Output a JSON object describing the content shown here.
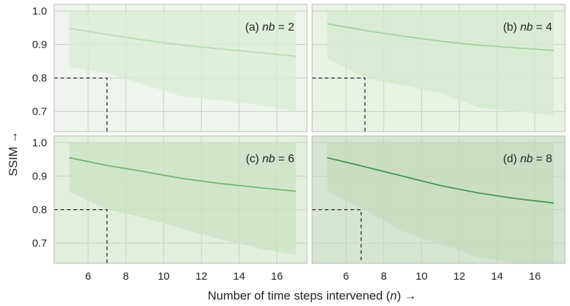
{
  "figure": {
    "xlabel_pre": "Number of time steps intervened (",
    "xlabel_var": "n",
    "xlabel_post": ") →",
    "ylabel": "SSIM →"
  },
  "chart_data": {
    "type": "line",
    "layout": "2x2 grid of panels sharing axes",
    "xlim": [
      4.2,
      17.6
    ],
    "ylim": [
      0.64,
      1.02
    ],
    "xticks": [
      6,
      8,
      10,
      12,
      14,
      16
    ],
    "yticks": [
      0.7,
      0.8,
      0.9,
      1.0
    ],
    "xtick_labels": [
      "6",
      "8",
      "10",
      "12",
      "14",
      "16"
    ],
    "ytick_labels": [
      "0.7",
      "0.8",
      "0.9",
      "1.0"
    ],
    "grid": true,
    "xlabel": "Number of time steps intervened (n) →",
    "ylabel": "SSIM →",
    "panels": [
      {
        "id": "a",
        "label_prefix": "(a) ",
        "label_var": "nb",
        "label_suffix": " = 2",
        "background": "#eef5ec",
        "band_color": "#d9ecd6",
        "line_color": "#b9dcb2",
        "x": [
          5,
          7,
          9,
          11,
          13,
          15,
          17
        ],
        "mean": [
          0.948,
          0.93,
          0.913,
          0.898,
          0.887,
          0.876,
          0.865
        ],
        "upper": [
          1.0,
          1.0,
          1.0,
          1.0,
          1.0,
          1.0,
          1.0
        ],
        "lower": [
          0.832,
          0.815,
          0.78,
          0.745,
          0.733,
          0.72,
          0.7
        ],
        "threshold": {
          "ssim": 0.8,
          "n": 7
        }
      },
      {
        "id": "b",
        "label_prefix": "(b) ",
        "label_var": "nb",
        "label_suffix": " = 4",
        "background": "#e8f3e4",
        "band_color": "#d4eacd",
        "line_color": "#9fd297",
        "x": [
          5,
          7,
          9,
          11,
          13,
          15,
          17
        ],
        "mean": [
          0.962,
          0.942,
          0.925,
          0.91,
          0.898,
          0.89,
          0.882
        ],
        "upper": [
          1.0,
          1.0,
          1.0,
          1.0,
          1.0,
          1.0,
          1.0
        ],
        "lower": [
          0.858,
          0.8,
          0.778,
          0.755,
          0.712,
          0.7,
          0.69
        ],
        "threshold": {
          "ssim": 0.8,
          "n": 7
        }
      },
      {
        "id": "c",
        "label_prefix": "(c) ",
        "label_var": "nb",
        "label_suffix": " = 6",
        "background": "#e2efde",
        "band_color": "#c9e2c3",
        "line_color": "#6cb866",
        "x": [
          5,
          7,
          9,
          11,
          13,
          15,
          17
        ],
        "mean": [
          0.955,
          0.932,
          0.913,
          0.893,
          0.878,
          0.866,
          0.855
        ],
        "upper": [
          1.0,
          1.0,
          1.0,
          1.0,
          1.0,
          1.0,
          1.0
        ],
        "lower": [
          0.853,
          0.8,
          0.775,
          0.743,
          0.712,
          0.685,
          0.665
        ],
        "threshold": {
          "ssim": 0.8,
          "n": 7
        }
      },
      {
        "id": "d",
        "label_prefix": "(d) ",
        "label_var": "nb",
        "label_suffix": " = 8",
        "background": "#d6e5d2",
        "band_color": "#c4dbbe",
        "line_color": "#3f9a45",
        "x": [
          5,
          7,
          9,
          11,
          13,
          15,
          17
        ],
        "mean": [
          0.955,
          0.928,
          0.9,
          0.872,
          0.85,
          0.833,
          0.82
        ],
        "upper": [
          1.0,
          1.0,
          1.0,
          1.0,
          1.0,
          1.0,
          1.0
        ],
        "lower": [
          0.855,
          0.8,
          0.735,
          0.698,
          0.658,
          0.64,
          0.64
        ],
        "threshold": {
          "ssim": 0.8,
          "n": 6.8
        }
      }
    ]
  }
}
